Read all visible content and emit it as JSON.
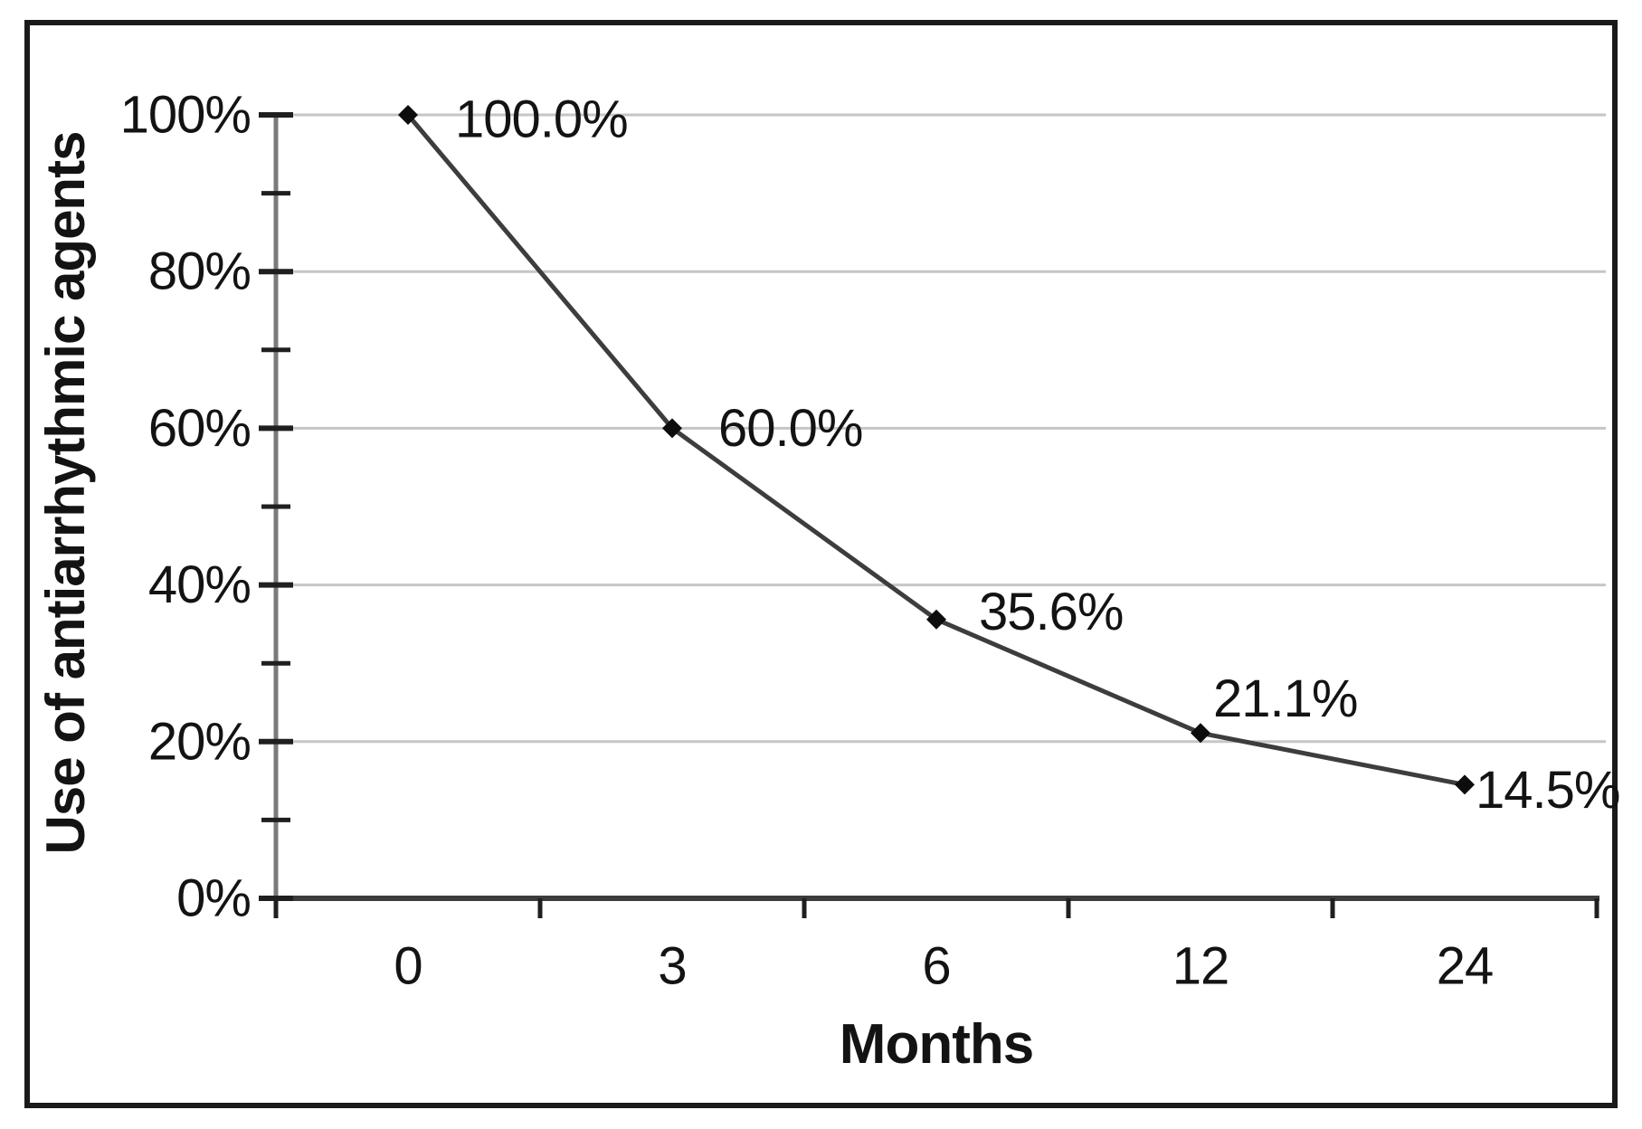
{
  "figure": {
    "background": "#ffffff",
    "border_color": "#1a1a1a"
  },
  "chart_data": {
    "type": "line",
    "title": "",
    "xlabel": "Months",
    "ylabel": "Use of antiarrhythmic agents",
    "categories": [
      "0",
      "3",
      "6",
      "12",
      "24"
    ],
    "series": [
      {
        "name": "Use of antiarrhythmic agents",
        "values": [
          100.0,
          60.0,
          35.6,
          21.1,
          14.5
        ],
        "point_labels": [
          "100.0%",
          "60.0%",
          "35.6%",
          "21.1%",
          "14.5%"
        ],
        "line_color": "#3d3d3d",
        "marker": "diamond",
        "marker_color": "#0d0d0d"
      }
    ],
    "y_axis": {
      "min": 0,
      "max": 100,
      "major_step": 20,
      "minor_step": 10,
      "tick_labels": [
        "0%",
        "20%",
        "40%",
        "60%",
        "80%",
        "100%"
      ]
    },
    "x_axis": {
      "tick_labels": [
        "0",
        "3",
        "6",
        "12",
        "24"
      ]
    },
    "grid": "horizontal-major",
    "gridline_color": "#c6c6c6",
    "axis_color_y": "#7a7a7a",
    "axis_color_x": "#3c3c3c",
    "tick_color": "#1f1f1f",
    "legend": "none"
  }
}
